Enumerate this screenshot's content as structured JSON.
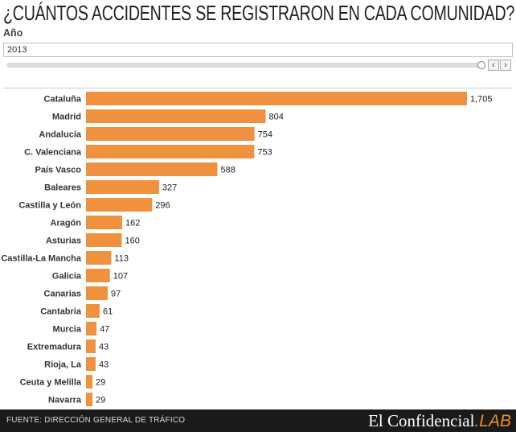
{
  "title": "¿CUÁNTOS ACCIDENTES SE REGISTRARON EN CADA COMUNIDAD?",
  "filter": {
    "label": "Año",
    "selected": "2013"
  },
  "slider": {
    "prev_glyph": "‹",
    "next_glyph": "›"
  },
  "footer": {
    "source": "FUENTE: DIRECCIÓN GENERAL DE TRÁFICO",
    "brand_main": "El Confidencial",
    "brand_dot": ".",
    "brand_suffix": "LAB"
  },
  "colors": {
    "bar": "#f0913f",
    "footer_bg": "#1a1a1a",
    "brand_accent": "#f08b2c"
  },
  "chart_data": {
    "type": "bar",
    "orientation": "horizontal",
    "categories": [
      "Cataluña",
      "Madrid",
      "Andalucía",
      "C. Valenciana",
      "País Vasco",
      "Baleares",
      "Castilla y León",
      "Aragón",
      "Asturias",
      "Castilla-La Mancha",
      "Galicia",
      "Canarias",
      "Cantabria",
      "Murcia",
      "Extremadura",
      "Rioja, La",
      "Ceuta y Melilla",
      "Navarra"
    ],
    "values": [
      1705,
      804,
      754,
      753,
      588,
      327,
      296,
      162,
      160,
      113,
      107,
      97,
      61,
      47,
      43,
      43,
      29,
      29
    ],
    "value_labels": [
      "1,705",
      "804",
      "754",
      "753",
      "588",
      "327",
      "296",
      "162",
      "160",
      "113",
      "107",
      "97",
      "61",
      "47",
      "43",
      "43",
      "29",
      "29"
    ],
    "xlim": [
      0,
      1705
    ],
    "title": "",
    "xlabel": "",
    "ylabel": "",
    "grid": false,
    "legend": "none"
  }
}
